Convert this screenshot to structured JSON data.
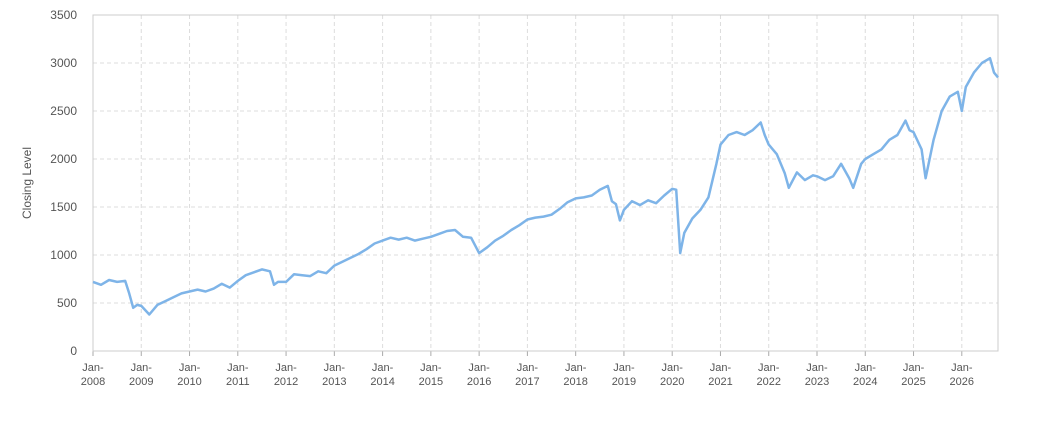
{
  "chart_data": {
    "type": "line",
    "y_label": "Closing Level",
    "x": [
      "2008-01",
      "2008-03",
      "2008-05",
      "2008-07",
      "2008-09",
      "2008-10",
      "2008-11",
      "2008-12",
      "2009-01",
      "2009-03",
      "2009-05",
      "2009-07",
      "2009-09",
      "2009-11",
      "2010-01",
      "2010-03",
      "2010-05",
      "2010-07",
      "2010-09",
      "2010-11",
      "2011-01",
      "2011-03",
      "2011-05",
      "2011-07",
      "2011-09",
      "2011-10",
      "2011-11",
      "2012-01",
      "2012-03",
      "2012-05",
      "2012-07",
      "2012-09",
      "2012-11",
      "2013-01",
      "2013-03",
      "2013-05",
      "2013-07",
      "2013-09",
      "2013-11",
      "2014-01",
      "2014-03",
      "2014-05",
      "2014-07",
      "2014-09",
      "2014-11",
      "2015-01",
      "2015-03",
      "2015-05",
      "2015-07",
      "2015-09",
      "2015-11",
      "2016-01",
      "2016-03",
      "2016-05",
      "2016-07",
      "2016-09",
      "2016-11",
      "2017-01",
      "2017-03",
      "2017-05",
      "2017-07",
      "2017-09",
      "2017-11",
      "2018-01",
      "2018-03",
      "2018-05",
      "2018-07",
      "2018-09",
      "2018-10",
      "2018-11",
      "2018-12",
      "2019-01",
      "2019-03",
      "2019-05",
      "2019-07",
      "2019-09",
      "2019-11",
      "2020-01",
      "2020-02",
      "2020-03",
      "2020-04",
      "2020-06",
      "2020-08",
      "2020-10",
      "2020-12",
      "2021-01",
      "2021-03",
      "2021-05",
      "2021-07",
      "2021-09",
      "2021-11",
      "2021-12",
      "2022-01",
      "2022-03",
      "2022-05",
      "2022-06",
      "2022-08",
      "2022-10",
      "2022-12",
      "2023-01",
      "2023-03",
      "2023-05",
      "2023-07",
      "2023-09",
      "2023-10",
      "2023-12",
      "2024-01",
      "2024-03",
      "2024-05",
      "2024-07",
      "2024-09",
      "2024-11",
      "2024-12",
      "2025-01",
      "2025-03",
      "2025-04",
      "2025-06",
      "2025-08",
      "2025-10",
      "2025-12",
      "2026-01",
      "2026-02",
      "2026-04",
      "2026-06",
      "2026-08",
      "2026-09",
      "2026-10"
    ],
    "series": [
      {
        "color": "#7eb4e8",
        "values": [
          720,
          690,
          740,
          720,
          730,
          600,
          450,
          480,
          470,
          380,
          480,
          520,
          560,
          600,
          620,
          640,
          620,
          650,
          700,
          660,
          730,
          790,
          820,
          850,
          830,
          690,
          720,
          720,
          800,
          790,
          780,
          830,
          810,
          890,
          930,
          970,
          1010,
          1060,
          1120,
          1150,
          1180,
          1160,
          1180,
          1150,
          1170,
          1190,
          1220,
          1250,
          1260,
          1190,
          1180,
          1020,
          1080,
          1150,
          1200,
          1260,
          1310,
          1370,
          1390,
          1400,
          1420,
          1480,
          1550,
          1590,
          1600,
          1620,
          1680,
          1720,
          1560,
          1530,
          1360,
          1470,
          1560,
          1520,
          1570,
          1540,
          1620,
          1690,
          1680,
          1020,
          1230,
          1380,
          1470,
          1600,
          1950,
          2150,
          2250,
          2280,
          2250,
          2300,
          2380,
          2250,
          2150,
          2050,
          1850,
          1700,
          1860,
          1780,
          1830,
          1820,
          1780,
          1820,
          1950,
          1800,
          1700,
          1950,
          2000,
          2050,
          2100,
          2200,
          2250,
          2400,
          2300,
          2280,
          2100,
          1800,
          2200,
          2500,
          2650,
          2700,
          2500,
          2750,
          2900,
          3000,
          3050,
          2900,
          2850
        ]
      }
    ],
    "xlim": [
      "2008-01",
      "2026-10"
    ],
    "xticks": [
      {
        "value": "2008-01",
        "label": "Jan-2008"
      },
      {
        "value": "2009-01",
        "label": "Jan-2009"
      },
      {
        "value": "2010-01",
        "label": "Jan-2010"
      },
      {
        "value": "2011-01",
        "label": "Jan-2011"
      },
      {
        "value": "2012-01",
        "label": "Jan-2012"
      },
      {
        "value": "2013-01",
        "label": "Jan-2013"
      },
      {
        "value": "2014-01",
        "label": "Jan-2014"
      },
      {
        "value": "2015-01",
        "label": "Jan-2015"
      },
      {
        "value": "2016-01",
        "label": "Jan-2016"
      },
      {
        "value": "2017-01",
        "label": "Jan-2017"
      },
      {
        "value": "2018-01",
        "label": "Jan-2018"
      },
      {
        "value": "2019-01",
        "label": "Jan-2019"
      },
      {
        "value": "2020-01",
        "label": "Jan-2020"
      },
      {
        "value": "2021-01",
        "label": "Jan-2021"
      },
      {
        "value": "2022-01",
        "label": "Jan-2022"
      },
      {
        "value": "2023-01",
        "label": "Jan-2023"
      },
      {
        "value": "2024-01",
        "label": "Jan-2024"
      },
      {
        "value": "2025-01",
        "label": "Jan-2025"
      },
      {
        "value": "2026-01",
        "label": "Jan-2026"
      }
    ],
    "ylim": [
      0,
      3500
    ],
    "yticks": [
      0,
      500,
      1000,
      1500,
      2000,
      2500,
      3000,
      3500
    ],
    "grid": true
  }
}
